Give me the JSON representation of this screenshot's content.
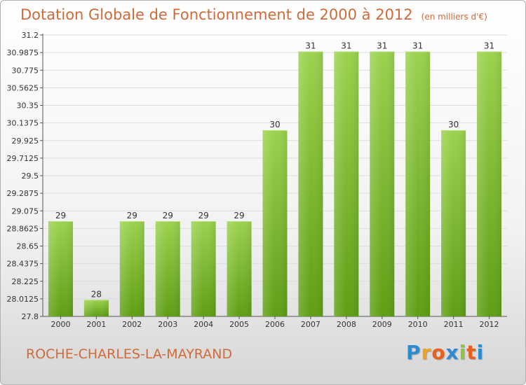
{
  "title": "Dotation Globale de Fonctionnement de 2000 à 2012",
  "unit_note": "(en milliers d'€)",
  "town": "ROCHE-CHARLES-LA-MAYRAND",
  "logo": {
    "text": "Proxiti",
    "letters": [
      {
        "ch": "P",
        "color": "#2e8bd0"
      },
      {
        "ch": "r",
        "color": "#f2a020"
      },
      {
        "ch": "o",
        "color": "#e8601c"
      },
      {
        "ch": "x",
        "color": "#2e8bd0"
      },
      {
        "ch": "i",
        "color": "#8cc63f"
      },
      {
        "ch": "t",
        "color": "#e8601c"
      },
      {
        "ch": "i",
        "color": "#2e8bd0"
      }
    ]
  },
  "colors": {
    "title": "#d06a3a",
    "bar_top": "#9bd24e",
    "bar_bottom": "#5f9e14",
    "axis": "#555555",
    "text": "#333333"
  },
  "chart_data": {
    "type": "bar",
    "categories": [
      "2000",
      "2001",
      "2002",
      "2003",
      "2004",
      "2005",
      "2006",
      "2007",
      "2008",
      "2009",
      "2010",
      "2011",
      "2012"
    ],
    "values": [
      28.95,
      28.0,
      28.95,
      28.95,
      28.95,
      28.95,
      30.05,
      31.0,
      31.0,
      31.0,
      31.0,
      30.05,
      31.0
    ],
    "data_labels": [
      "29",
      "28",
      "29",
      "29",
      "29",
      "29",
      "30",
      "31",
      "31",
      "31",
      "31",
      "30",
      "31"
    ],
    "y_ticks": [
      "27.8",
      "28.0125",
      "28.225",
      "28.4375",
      "28.65",
      "28.8625",
      "29.075",
      "29.2875",
      "29.5",
      "29.7125",
      "29.925",
      "30.1375",
      "30.35",
      "30.5625",
      "30.775",
      "30.9875",
      "31.2"
    ],
    "ylim": [
      27.8,
      31.2
    ],
    "grid": true,
    "legend": "none"
  }
}
